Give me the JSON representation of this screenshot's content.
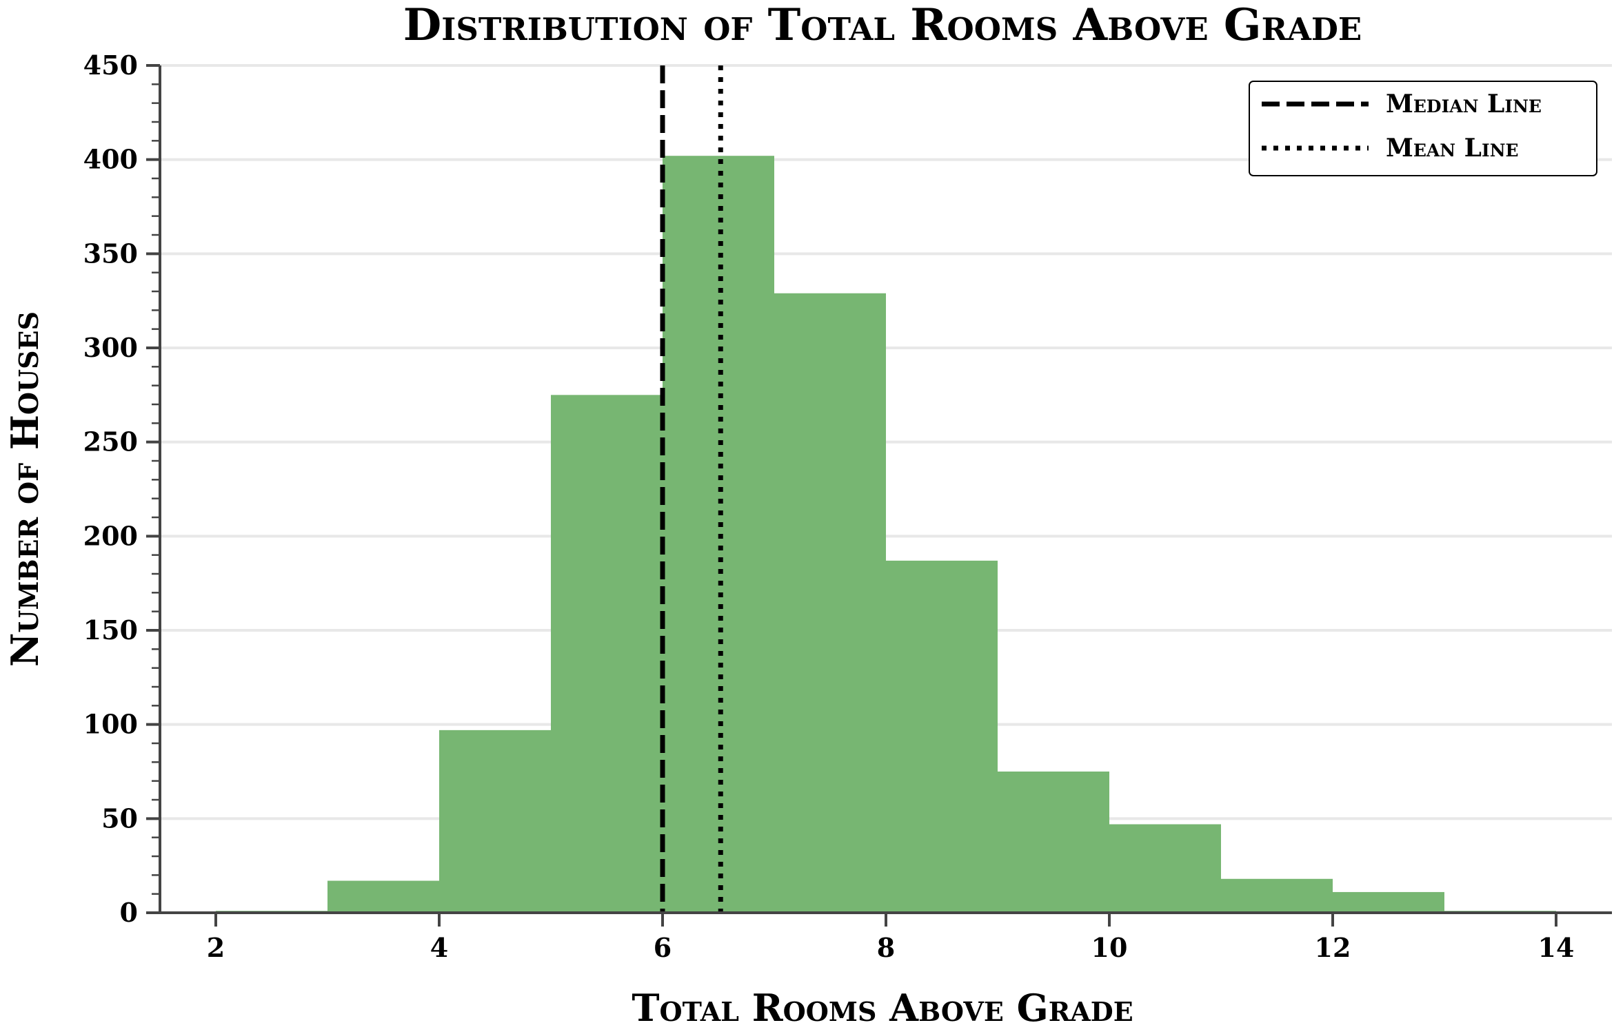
{
  "chart_data": {
    "type": "bar",
    "title": "Distribution of Total Rooms Above Grade",
    "xlabel": "Total Rooms Above Grade",
    "ylabel": "Number of Houses",
    "xlim": [
      1.5,
      14.5
    ],
    "ylim": [
      0,
      450
    ],
    "xticks": [
      2,
      4,
      6,
      8,
      10,
      12,
      14
    ],
    "yticks": [
      0,
      50,
      100,
      150,
      200,
      250,
      300,
      350,
      400,
      450
    ],
    "bin_edges": [
      2,
      3,
      4,
      5,
      6,
      7,
      8,
      9,
      10,
      11,
      12,
      13,
      14
    ],
    "values": [
      1,
      17,
      97,
      275,
      402,
      329,
      187,
      75,
      47,
      18,
      11,
      1
    ],
    "bar_color": "#77b672",
    "grid": true,
    "median": 6,
    "mean": 6.52,
    "legend": {
      "placement": "top-right",
      "entries": [
        {
          "label": "Median Line",
          "style": "dashed"
        },
        {
          "label": "Mean Line",
          "style": "dotted"
        }
      ]
    }
  }
}
